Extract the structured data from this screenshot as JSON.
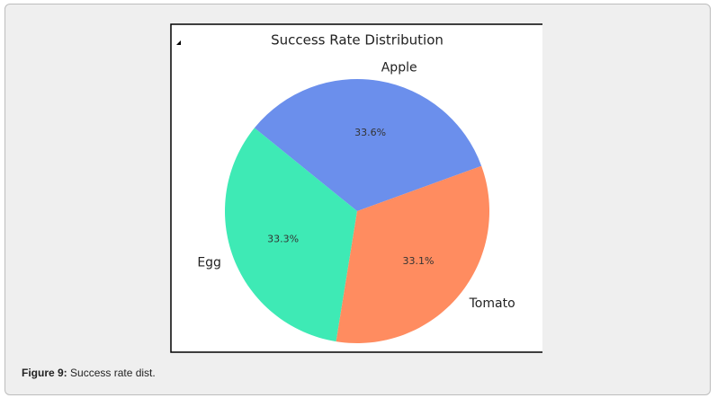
{
  "chart_data": {
    "type": "pie",
    "title": "Success Rate Distribution",
    "categories": [
      "Apple",
      "Egg",
      "Tomato"
    ],
    "values": [
      33.6,
      33.3,
      33.1
    ],
    "value_labels": [
      "33.6%",
      "33.3%",
      "33.1%"
    ],
    "colors": [
      "#6b8fec",
      "#3eeab5",
      "#ff8c60"
    ]
  },
  "caption": {
    "label": "Figure 9:",
    "text": "Success rate dist."
  }
}
